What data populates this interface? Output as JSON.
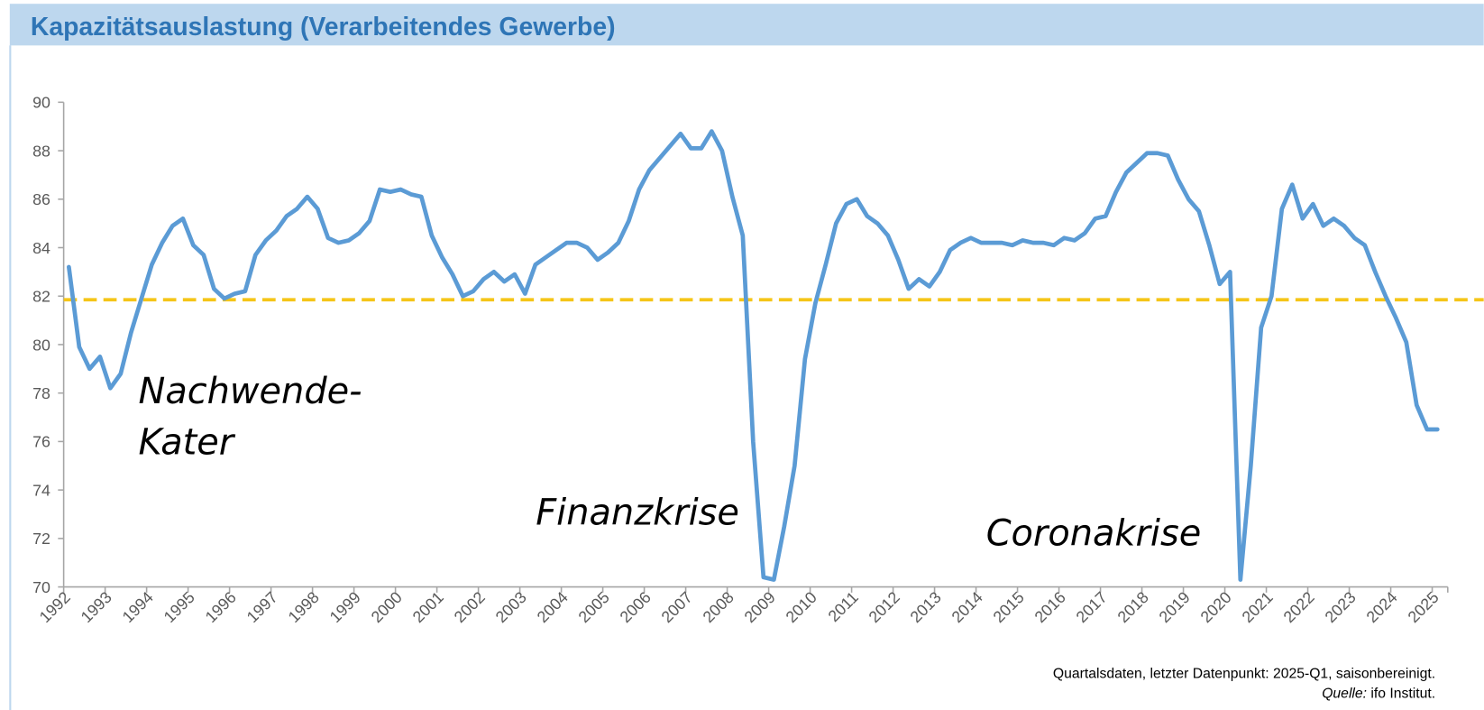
{
  "chart_data": {
    "type": "line",
    "title": "Kapazitätsauslastung (Verarbeitendes Gewerbe)",
    "categories": [
      "1992",
      null,
      null,
      null,
      "1993",
      null,
      null,
      null,
      "1994",
      null,
      null,
      null,
      "1995",
      null,
      null,
      null,
      "1996",
      null,
      null,
      null,
      "1997",
      null,
      null,
      null,
      "1998",
      null,
      null,
      null,
      "1999",
      null,
      null,
      null,
      "2000",
      null,
      null,
      null,
      "2001",
      null,
      null,
      null,
      "2002",
      null,
      null,
      null,
      "2003",
      null,
      null,
      null,
      "2004",
      null,
      null,
      null,
      "2005",
      null,
      null,
      null,
      "2006",
      null,
      null,
      null,
      "2007",
      null,
      null,
      null,
      "2008",
      null,
      null,
      null,
      "2009",
      null,
      null,
      null,
      "2010",
      null,
      null,
      null,
      "2011",
      null,
      null,
      null,
      "2012",
      null,
      null,
      null,
      "2013",
      null,
      null,
      null,
      "2014",
      null,
      null,
      null,
      "2015",
      null,
      null,
      null,
      "2016",
      null,
      null,
      null,
      "2017",
      null,
      null,
      null,
      "2018",
      null,
      null,
      null,
      "2019",
      null,
      null,
      null,
      "2020",
      null,
      null,
      null,
      "2021",
      null,
      null,
      null,
      "2022",
      null,
      null,
      null,
      "2023",
      null,
      null,
      null,
      "2024",
      null,
      null,
      null,
      "2025"
    ],
    "series": [
      {
        "name": "Kapazitätsauslastung",
        "color": "#5b9bd5",
        "values": [
          83.2,
          79.9,
          79.0,
          79.5,
          78.2,
          78.8,
          80.5,
          81.9,
          83.3,
          84.2,
          84.9,
          85.2,
          84.1,
          83.7,
          82.3,
          81.9,
          82.1,
          82.2,
          83.7,
          84.3,
          84.7,
          85.3,
          85.6,
          86.1,
          85.6,
          84.4,
          84.2,
          84.3,
          84.6,
          85.1,
          86.4,
          86.3,
          86.4,
          86.2,
          86.1,
          84.5,
          83.6,
          82.9,
          82.0,
          82.2,
          82.7,
          83.0,
          82.6,
          82.9,
          82.1,
          83.3,
          83.6,
          83.9,
          84.2,
          84.2,
          84.0,
          83.5,
          83.8,
          84.2,
          85.1,
          86.4,
          87.2,
          87.7,
          88.2,
          88.7,
          88.1,
          88.1,
          88.8,
          88.0,
          86.1,
          84.5,
          76.0,
          70.4,
          70.3,
          72.5,
          75.0,
          79.4,
          81.7,
          83.3,
          85.0,
          85.8,
          86.0,
          85.3,
          85.0,
          84.5,
          83.5,
          82.3,
          82.7,
          82.4,
          83.0,
          83.9,
          84.2,
          84.4,
          84.2,
          84.2,
          84.2,
          84.1,
          84.3,
          84.2,
          84.2,
          84.1,
          84.4,
          84.3,
          84.6,
          85.2,
          85.3,
          86.3,
          87.1,
          87.5,
          87.9,
          87.9,
          87.8,
          86.8,
          86.0,
          85.5,
          84.1,
          82.5,
          83.0,
          70.3,
          75.0,
          80.7,
          82.0,
          85.6,
          86.6,
          85.2,
          85.8,
          84.9,
          85.2,
          84.9,
          84.4,
          84.1,
          83.0,
          82.0,
          81.1,
          80.1,
          77.5,
          76.5,
          76.5
        ]
      }
    ],
    "reference_line": {
      "value": 81.85,
      "color": "#f5c518"
    },
    "ylim": [
      70,
      90
    ],
    "yticks": [
      70,
      72,
      74,
      76,
      78,
      80,
      82,
      84,
      86,
      88,
      90
    ],
    "annotations": [
      "Nachwende-",
      "Kater",
      "Finanzkrise",
      "Coronakrise"
    ],
    "footnote": "Quartalsdaten, letzter Datenpunkt: 2025-Q1, saisonbereinigt.",
    "source_label": "Quelle:",
    "source": " ifo Institut."
  }
}
